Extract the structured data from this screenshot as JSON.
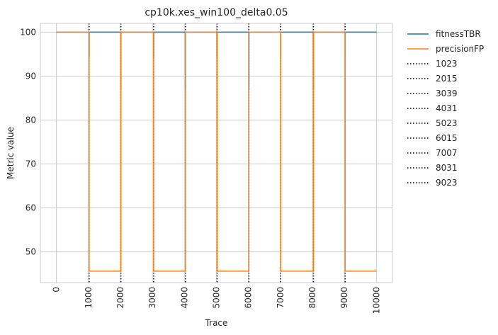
{
  "chart_data": {
    "type": "line",
    "title": "cp10k.xes_win100_delta0.05",
    "xlabel": "Trace",
    "ylabel": "Metric value",
    "xlim": [
      -500,
      10500
    ],
    "ylim": [
      43,
      102
    ],
    "xticks": [
      0,
      1000,
      2000,
      3000,
      4000,
      5000,
      6000,
      7000,
      8000,
      9000,
      10000
    ],
    "yticks": [
      50,
      60,
      70,
      80,
      90,
      100
    ],
    "grid": true,
    "legend_position": "outside-right",
    "series": [
      {
        "name": "fitnessTBR",
        "color": "#1f77b4",
        "x": [
          0,
          1023,
          1023,
          1025,
          1025,
          2015,
          2015,
          2017,
          2017,
          3039,
          3039,
          3041,
          3041,
          4031,
          4031,
          4033,
          4033,
          5023,
          5023,
          5025,
          5025,
          6015,
          6015,
          6017,
          6017,
          7007,
          7007,
          7009,
          7009,
          8031,
          8031,
          8033,
          8033,
          9023,
          9023,
          9025,
          9025,
          10000
        ],
        "y": [
          100,
          100,
          94.5,
          94.5,
          100,
          100,
          87,
          87,
          100,
          100,
          94.5,
          94.5,
          100,
          100,
          87,
          87,
          100,
          100,
          94.5,
          94.5,
          100,
          100,
          87,
          87,
          100,
          100,
          94.5,
          94.5,
          100,
          100,
          87,
          87,
          100,
          100,
          94.5,
          94.5,
          100,
          100
        ]
      },
      {
        "name": "precisionFP",
        "color": "#ff7f0e",
        "x": [
          0,
          1023,
          1023,
          2015,
          2015,
          3039,
          3039,
          4031,
          4031,
          5023,
          5023,
          6015,
          6015,
          7007,
          7007,
          8031,
          8031,
          9023,
          9023,
          10000
        ],
        "y": [
          100,
          100,
          45.6,
          45.6,
          100,
          100,
          45.6,
          45.6,
          100,
          100,
          45.6,
          45.6,
          100,
          100,
          45.6,
          45.6,
          100,
          100,
          45.6,
          45.6
        ]
      }
    ],
    "vlines": [
      {
        "name": "1023",
        "x": 1023
      },
      {
        "name": "2015",
        "x": 2015
      },
      {
        "name": "3039",
        "x": 3039
      },
      {
        "name": "4031",
        "x": 4031
      },
      {
        "name": "5023",
        "x": 5023
      },
      {
        "name": "6015",
        "x": 6015
      },
      {
        "name": "7007",
        "x": 7007
      },
      {
        "name": "8031",
        "x": 8031
      },
      {
        "name": "9023",
        "x": 9023
      }
    ],
    "vline_color": "#000000"
  }
}
